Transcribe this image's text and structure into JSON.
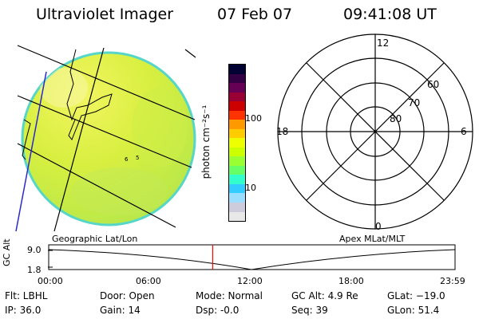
{
  "header": {
    "instrument": "Ultraviolet Imager",
    "date": "07 Feb 07",
    "time": "09:41:08 UT"
  },
  "colorbar": {
    "unit_label": "photon cm⁻²s⁻¹",
    "ticks": [
      "100",
      "10"
    ],
    "colors": [
      "#000033",
      "#330044",
      "#660055",
      "#990033",
      "#cc0000",
      "#ff3300",
      "#ff9900",
      "#ffcc00",
      "#eeff00",
      "#ccff00",
      "#99ff33",
      "#66ff66",
      "#33ffcc",
      "#33ccff",
      "#99ddff",
      "#ccccdd",
      "#e8e8e8"
    ]
  },
  "polar_grid": {
    "mlt_labels": {
      "top": "12",
      "right": "6",
      "bottom": "0",
      "left": "18"
    },
    "lat_labels": [
      "60",
      "70",
      "80"
    ]
  },
  "image_panel": {
    "bg_color": "#d8ef40",
    "edge_color": "#55d6c8",
    "markers": [
      "6",
      "5"
    ]
  },
  "timeline": {
    "ylabel": "GC Alt",
    "left_caption": "Geographic Lat/Lon",
    "right_caption": "Apex MLat/MLT",
    "y_ticks": [
      "9.0",
      "1.8"
    ],
    "x_ticks": [
      "00:00",
      "06:00",
      "12:00",
      "18:00",
      "23:59"
    ],
    "current_time": "09:41",
    "marker_color": "#ff0000"
  },
  "info": {
    "flt": "Flt: LBHL",
    "ip": "IP: 36.0",
    "door": "Door: Open",
    "gain": "Gain: 14",
    "mode": "Mode: Normal",
    "dsp": "Dsp:  -0.0",
    "gcalt": "GC Alt: 4.9 Re",
    "seq": "Seq: 39",
    "glat": "GLat: −19.0",
    "glon": "GLon:  51.4"
  }
}
